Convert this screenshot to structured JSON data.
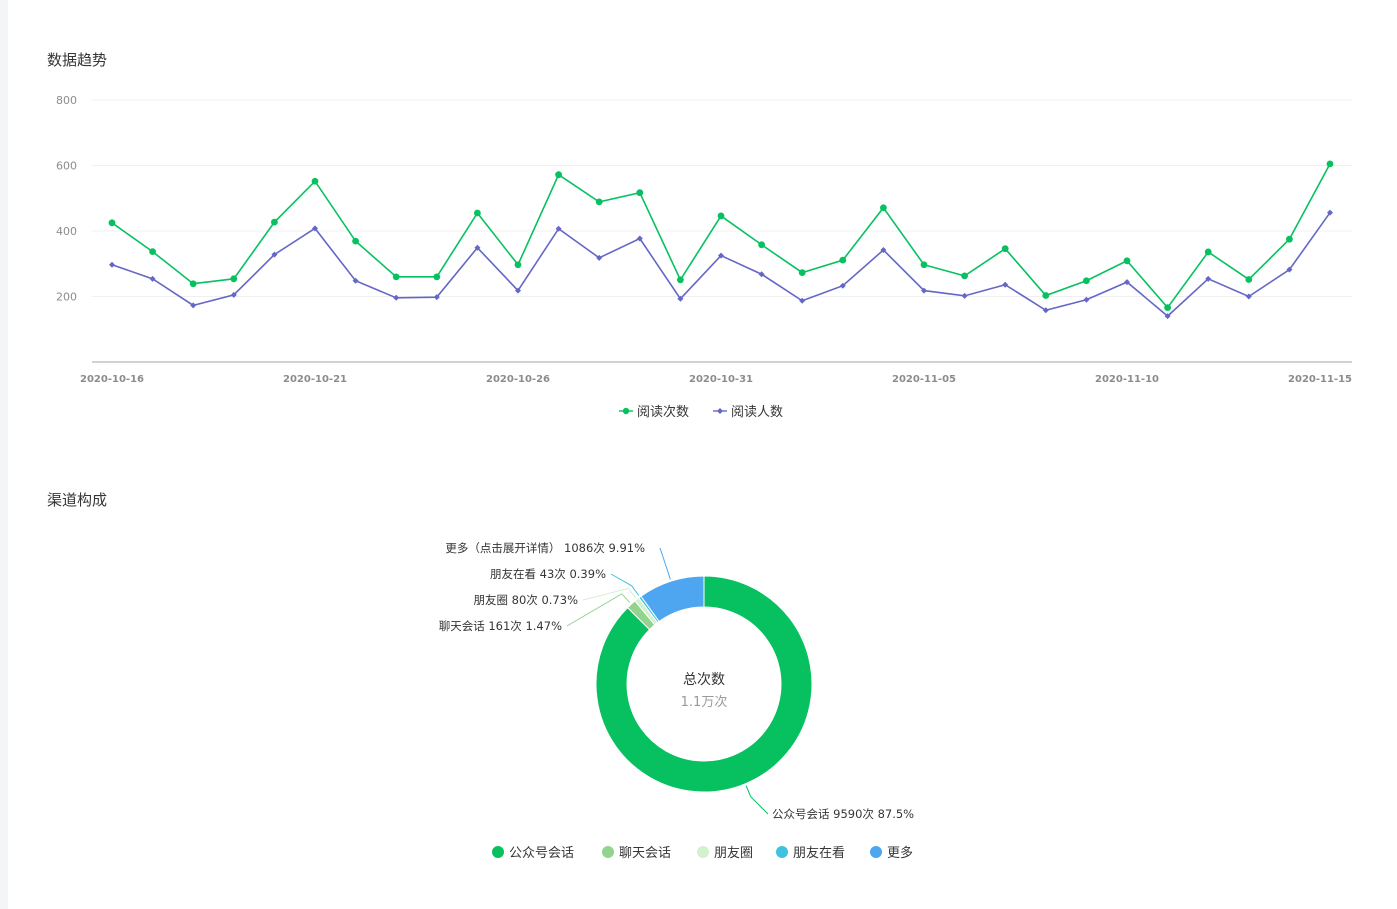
{
  "sections": {
    "trend_title": "数据趋势",
    "channel_title": "渠道构成"
  },
  "chart_data": [
    {
      "type": "line",
      "title": "数据趋势",
      "x": [
        "2020-10-16",
        "2020-10-17",
        "2020-10-18",
        "2020-10-19",
        "2020-10-20",
        "2020-10-21",
        "2020-10-22",
        "2020-10-23",
        "2020-10-24",
        "2020-10-25",
        "2020-10-26",
        "2020-10-27",
        "2020-10-28",
        "2020-10-29",
        "2020-10-30",
        "2020-10-31",
        "2020-11-01",
        "2020-11-02",
        "2020-11-03",
        "2020-11-04",
        "2020-11-05",
        "2020-11-06",
        "2020-11-07",
        "2020-11-08",
        "2020-11-09",
        "2020-11-10",
        "2020-11-11",
        "2020-11-12",
        "2020-11-13",
        "2020-11-14",
        "2020-11-15"
      ],
      "x_tick_labels": [
        "2020-10-16",
        "2020-10-21",
        "2020-10-26",
        "2020-10-31",
        "2020-11-05",
        "2020-11-10",
        "2020-11-15"
      ],
      "y_ticks": [
        200,
        400,
        600,
        800
      ],
      "ylim": [
        0,
        800
      ],
      "grid": true,
      "legend_position": "bottom-center",
      "series": [
        {
          "name": "阅读次数",
          "color": "#07c160",
          "marker": "circle",
          "values": [
            425,
            337,
            239,
            254,
            427,
            552,
            369,
            260,
            260,
            455,
            297,
            572,
            489,
            517,
            251,
            446,
            358,
            273,
            311,
            471,
            297,
            263,
            346,
            203,
            248,
            309,
            166,
            336,
            252,
            375,
            605
          ]
        },
        {
          "name": "阅读人数",
          "color": "#6467c5",
          "marker": "diamond",
          "values": [
            297,
            254,
            173,
            205,
            328,
            408,
            248,
            196,
            198,
            349,
            218,
            407,
            318,
            377,
            193,
            325,
            268,
            187,
            233,
            342,
            218,
            202,
            236,
            158,
            190,
            244,
            140,
            254,
            200,
            282,
            456
          ]
        }
      ]
    },
    {
      "type": "pie",
      "title": "渠道构成",
      "donut": true,
      "center_title": "总次数",
      "center_value": "1.1万次",
      "legend_position": "bottom-center",
      "slices": [
        {
          "name": "公众号会话",
          "value": 9590,
          "label": "公众号会话 9590次 87.5%",
          "color": "#07c160"
        },
        {
          "name": "聊天会话",
          "value": 161,
          "label": "聊天会话 161次 1.47%",
          "color": "#92d38e"
        },
        {
          "name": "朋友圈",
          "value": 80,
          "label": "朋友圈 80次 0.73%",
          "color": "#d3f0cf"
        },
        {
          "name": "朋友在看",
          "value": 43,
          "label": "朋友在看 43次 0.39%",
          "color": "#3fc2e0"
        },
        {
          "name": "更多",
          "value": 1086,
          "label": "更多（点击展开详情） 1086次 9.91%",
          "color": "#4ea5f0"
        }
      ]
    }
  ]
}
